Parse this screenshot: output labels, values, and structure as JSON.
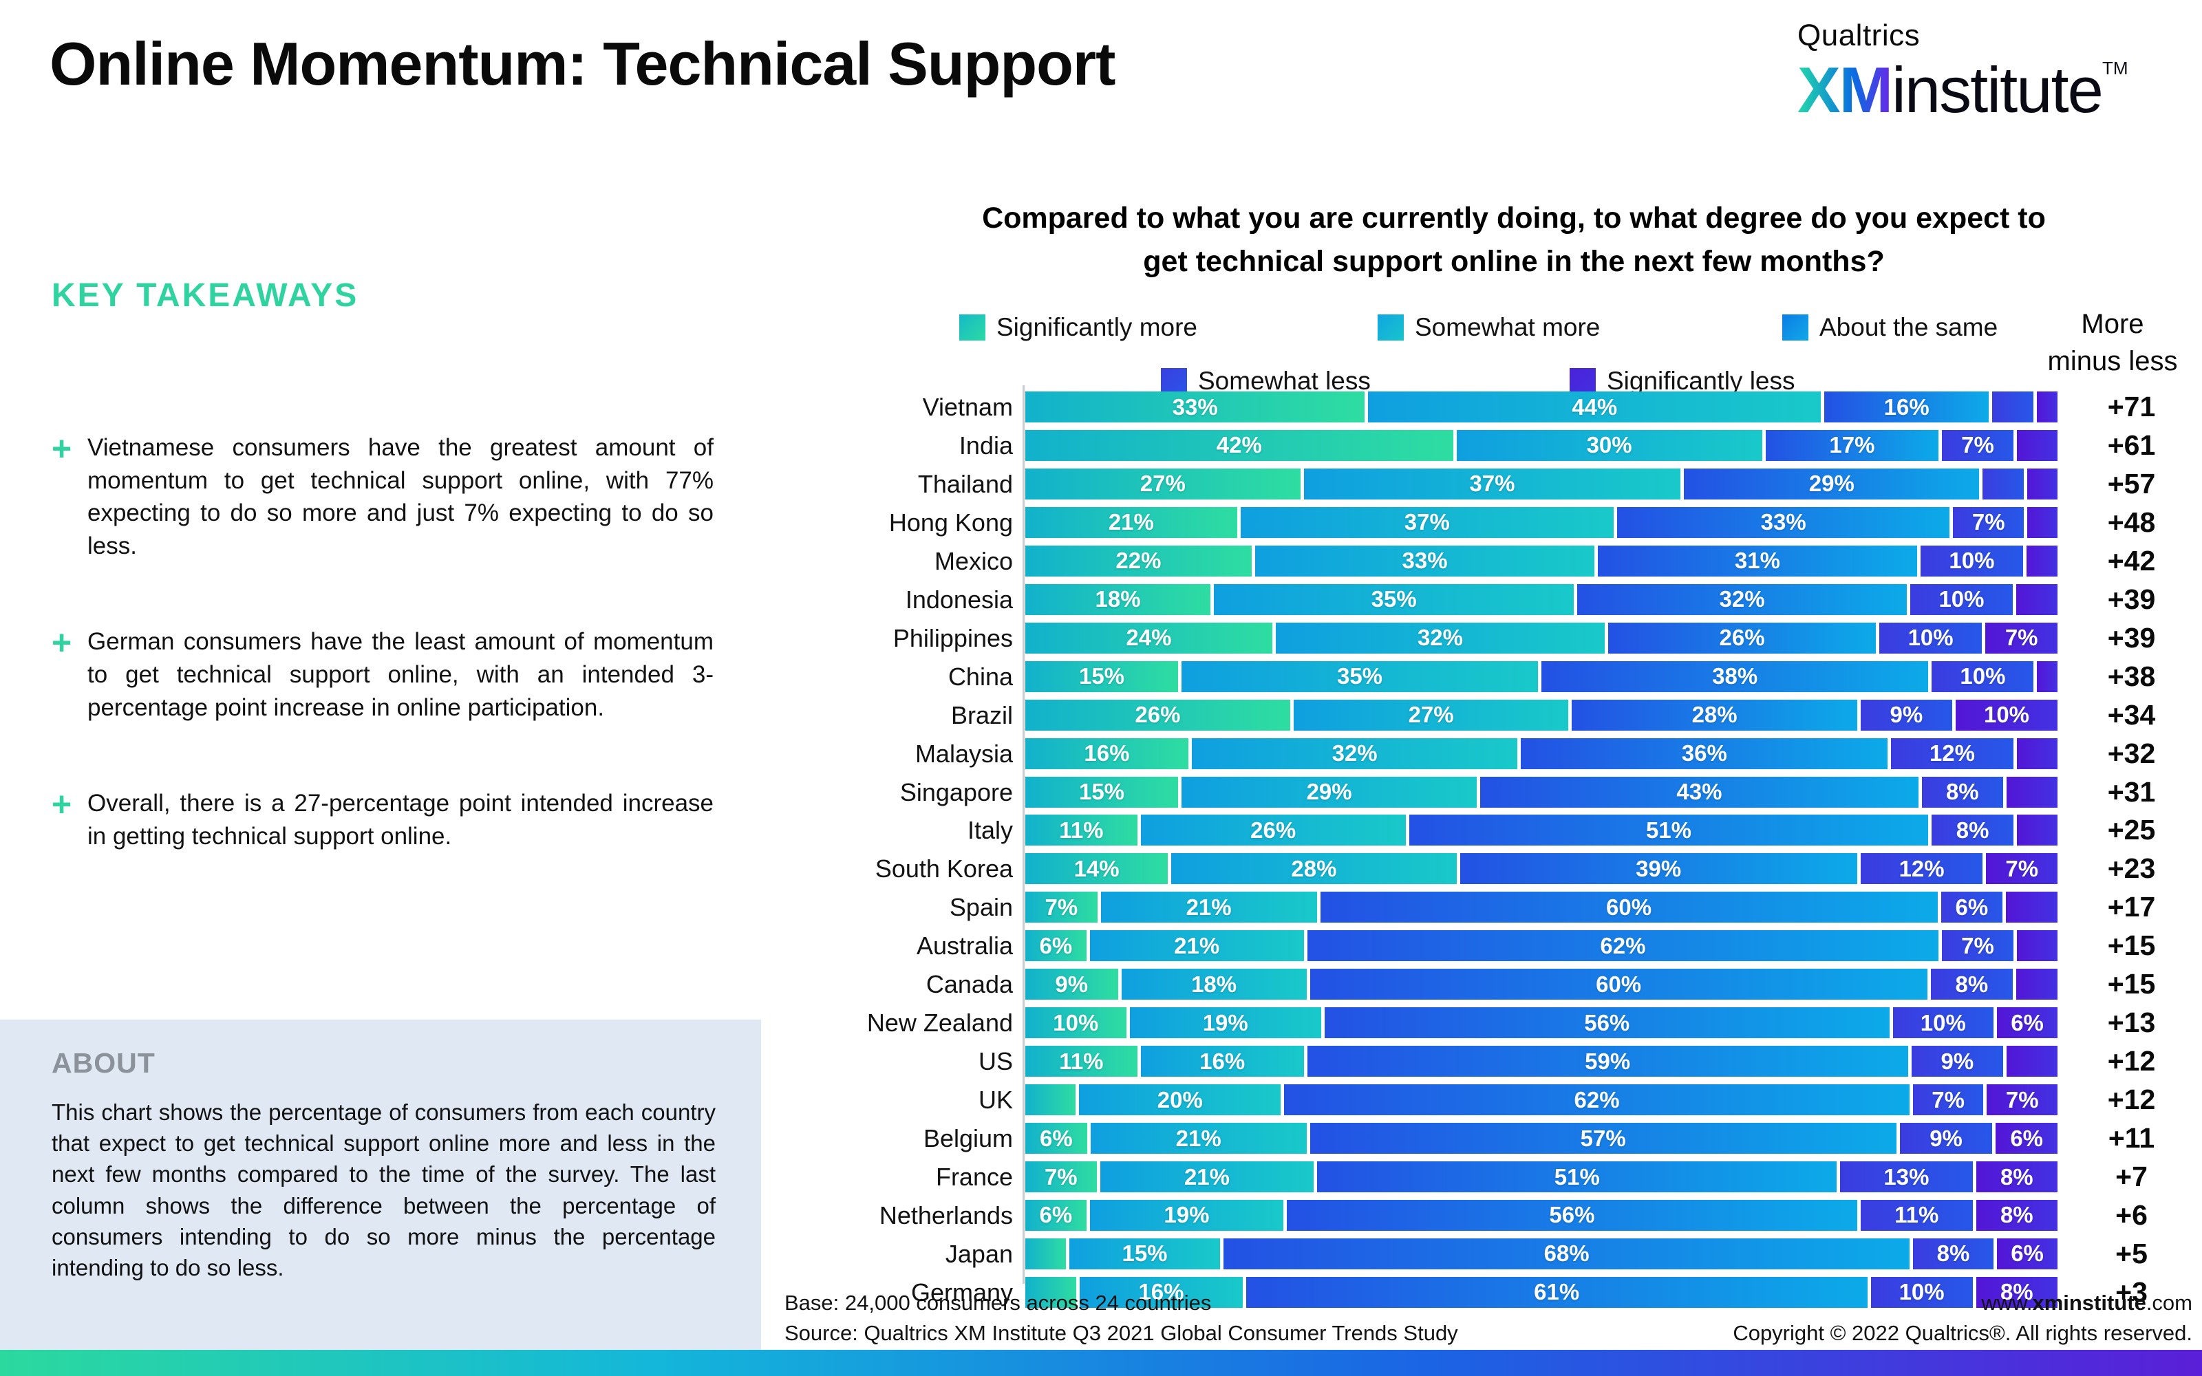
{
  "page": {
    "title": "Online Momentum: Technical Support"
  },
  "logo": {
    "brand": "Qualtrics",
    "xm": "XM",
    "institute": "institute",
    "tm": "TM"
  },
  "takeaways": {
    "heading": "KEY TAKEAWAYS",
    "marker": "+",
    "items": [
      "Vietnamese consumers have the greatest amount of momentum to get technical support online, with 77% expecting to do so more and just 7% expecting to do so less.",
      "German consumers have the least amount of momentum to get technical support online, with an intended 3-percentage point increase in online participation.",
      "Overall, there is a 27-percentage point intended increase in getting technical support online."
    ]
  },
  "about": {
    "heading": "ABOUT",
    "body": "This chart shows the percentage of consumers from each country that expect to get technical support online more and less in the next few months compared to the time of the survey. The last column shows the difference between the percentage of consumers intending to do so more minus the percentage intending to do so less."
  },
  "chart": {
    "question_line1": "Compared to what you are currently doing, to what degree do you expect to",
    "question_line2": "get technical support online in the next few months?",
    "more_line1": "More",
    "more_line2": "minus less",
    "legend": [
      {
        "label": "Significantly more",
        "start": "#16b9c9",
        "end": "#2bdba2"
      },
      {
        "label": "Somewhat more",
        "start": "#10a5e2",
        "end": "#18c5cb"
      },
      {
        "label": "About the same",
        "start": "#0b7de5",
        "end": "#12a8e8"
      },
      {
        "label": "Somewhat less",
        "start": "#3a3fe0",
        "end": "#2a55e8"
      },
      {
        "label": "Significantly less",
        "start": "#4a22d9",
        "end": "#4430e0"
      }
    ]
  },
  "chart_data": {
    "type": "bar",
    "orientation": "horizontal",
    "stacked": true,
    "title": "Compared to what you are currently doing, to what degree do you expect to get technical support online in the next few months?",
    "categories": [
      "Significantly more",
      "Somewhat more",
      "About the same",
      "Somewhat less",
      "Significantly less"
    ],
    "last_column_header": "More minus less",
    "segment_gradients": [
      [
        "#12b1cc",
        "#2edda1"
      ],
      [
        "#0f9fe0",
        "#19c9c9"
      ],
      [
        "#2351e4",
        "#0caae8"
      ],
      [
        "#3b3ce0",
        "#2658e8"
      ],
      [
        "#5316d6",
        "#4331e2"
      ]
    ],
    "rows": [
      {
        "country": "Vietnam",
        "values": [
          33,
          44,
          16,
          4,
          2
        ],
        "labels": [
          "33%",
          "44%",
          "16%",
          null,
          null
        ],
        "diff": "+71"
      },
      {
        "country": "India",
        "values": [
          42,
          30,
          17,
          7,
          4
        ],
        "labels": [
          "42%",
          "30%",
          "17%",
          "7%",
          null
        ],
        "diff": "+61"
      },
      {
        "country": "Thailand",
        "values": [
          27,
          37,
          29,
          4,
          3
        ],
        "labels": [
          "27%",
          "37%",
          "29%",
          null,
          null
        ],
        "diff": "+57"
      },
      {
        "country": "Hong Kong",
        "values": [
          21,
          37,
          33,
          7,
          3
        ],
        "labels": [
          "21%",
          "37%",
          "33%",
          "7%",
          null
        ],
        "diff": "+48"
      },
      {
        "country": "Mexico",
        "values": [
          22,
          33,
          31,
          10,
          3
        ],
        "labels": [
          "22%",
          "33%",
          "31%",
          "10%",
          null
        ],
        "diff": "+42"
      },
      {
        "country": "Indonesia",
        "values": [
          18,
          35,
          32,
          10,
          4
        ],
        "labels": [
          "18%",
          "35%",
          "32%",
          "10%",
          null
        ],
        "diff": "+39"
      },
      {
        "country": "Philippines",
        "values": [
          24,
          32,
          26,
          10,
          7
        ],
        "labels": [
          "24%",
          "32%",
          "26%",
          "10%",
          "7%"
        ],
        "diff": "+39"
      },
      {
        "country": "China",
        "values": [
          15,
          35,
          38,
          10,
          2
        ],
        "labels": [
          "15%",
          "35%",
          "38%",
          "10%",
          null
        ],
        "diff": "+38"
      },
      {
        "country": "Brazil",
        "values": [
          26,
          27,
          28,
          9,
          10
        ],
        "labels": [
          "26%",
          "27%",
          "28%",
          "9%",
          "10%"
        ],
        "diff": "+34"
      },
      {
        "country": "Malaysia",
        "values": [
          16,
          32,
          36,
          12,
          4
        ],
        "labels": [
          "16%",
          "32%",
          "36%",
          "12%",
          null
        ],
        "diff": "+32"
      },
      {
        "country": "Singapore",
        "values": [
          15,
          29,
          43,
          8,
          5
        ],
        "labels": [
          "15%",
          "29%",
          "43%",
          "8%",
          null
        ],
        "diff": "+31"
      },
      {
        "country": "Italy",
        "values": [
          11,
          26,
          51,
          8,
          4
        ],
        "labels": [
          "11%",
          "26%",
          "51%",
          "8%",
          null
        ],
        "diff": "+25"
      },
      {
        "country": "South Korea",
        "values": [
          14,
          28,
          39,
          12,
          7
        ],
        "labels": [
          "14%",
          "28%",
          "39%",
          "12%",
          "7%"
        ],
        "diff": "+23"
      },
      {
        "country": "Spain",
        "values": [
          7,
          21,
          60,
          6,
          5
        ],
        "labels": [
          "7%",
          "21%",
          "60%",
          "6%",
          null
        ],
        "diff": "+17"
      },
      {
        "country": "Australia",
        "values": [
          6,
          21,
          62,
          7,
          4
        ],
        "labels": [
          "6%",
          "21%",
          "62%",
          "7%",
          null
        ],
        "diff": "+15"
      },
      {
        "country": "Canada",
        "values": [
          9,
          18,
          60,
          8,
          4
        ],
        "labels": [
          "9%",
          "18%",
          "60%",
          "8%",
          null
        ],
        "diff": "+15"
      },
      {
        "country": "New Zealand",
        "values": [
          10,
          19,
          56,
          10,
          6
        ],
        "labels": [
          "10%",
          "19%",
          "56%",
          "10%",
          "6%"
        ],
        "diff": "+13"
      },
      {
        "country": "US",
        "values": [
          11,
          16,
          59,
          9,
          5
        ],
        "labels": [
          "11%",
          "16%",
          "59%",
          "9%",
          null
        ],
        "diff": "+12"
      },
      {
        "country": "UK",
        "values": [
          5,
          20,
          62,
          7,
          7
        ],
        "labels": [
          null,
          "20%",
          "62%",
          "7%",
          "7%"
        ],
        "diff": "+12"
      },
      {
        "country": "Belgium",
        "values": [
          6,
          21,
          57,
          9,
          6
        ],
        "labels": [
          "6%",
          "21%",
          "57%",
          "9%",
          "6%"
        ],
        "diff": "+11"
      },
      {
        "country": "France",
        "values": [
          7,
          21,
          51,
          13,
          8
        ],
        "labels": [
          "7%",
          "21%",
          "51%",
          "13%",
          "8%"
        ],
        "diff": "+7"
      },
      {
        "country": "Netherlands",
        "values": [
          6,
          19,
          56,
          11,
          8
        ],
        "labels": [
          "6%",
          "19%",
          "56%",
          "11%",
          "8%"
        ],
        "diff": "+6"
      },
      {
        "country": "Japan",
        "values": [
          4,
          15,
          68,
          8,
          6
        ],
        "labels": [
          null,
          "15%",
          "68%",
          "8%",
          "6%"
        ],
        "diff": "+5"
      },
      {
        "country": "Germany",
        "values": [
          5,
          16,
          61,
          10,
          8
        ],
        "labels": [
          null,
          "16%",
          "61%",
          "10%",
          "8%"
        ],
        "diff": "+3"
      }
    ]
  },
  "footer": {
    "base": "Base: 24,000 consumers across 24 countries",
    "source": "Source: Qualtrics XM Institute Q3 2021 Global Consumer Trends Study",
    "url_prefix": "www.",
    "url_bold": "xminstitute",
    "url_suffix": ".com",
    "copyright": "Copyright © 2022 Qualtrics®. All rights reserved."
  },
  "colors": {
    "accent_teal": "#2ed3a0",
    "about_bg": "#dfe8f3",
    "about_heading": "#8b9299",
    "strip_gradient": [
      "#2bd99e",
      "#14b6da",
      "#1b64e4",
      "#5a1fd8"
    ],
    "xm_gradient": [
      "#21d9aa",
      "#0b6ce2",
      "#6a27e8"
    ]
  }
}
